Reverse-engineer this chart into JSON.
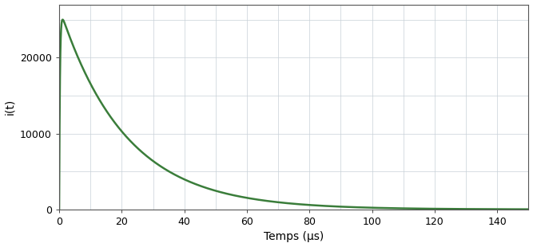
{
  "title": "",
  "xlabel": "Temps (μs)",
  "ylabel": "i(t)",
  "xlim": [
    0,
    150
  ],
  "ylim": [
    0,
    27000
  ],
  "yticks": [
    0,
    10000,
    20000
  ],
  "xticks": [
    0,
    20,
    40,
    60,
    80,
    100,
    120,
    140
  ],
  "peak": 25000,
  "alpha": 0.0477,
  "beta": 4.0,
  "line_color": "#3a7d3a",
  "line_width": 1.8,
  "grid_color": "#c8d0d8",
  "grid_linewidth": 0.5,
  "bg_color": "#ffffff",
  "plot_bg_color": "#ffffff",
  "border_color": "#555555",
  "xlabel_fontsize": 10,
  "ylabel_fontsize": 10,
  "tick_fontsize": 9,
  "figsize": [
    6.67,
    3.1
  ],
  "dpi": 100
}
